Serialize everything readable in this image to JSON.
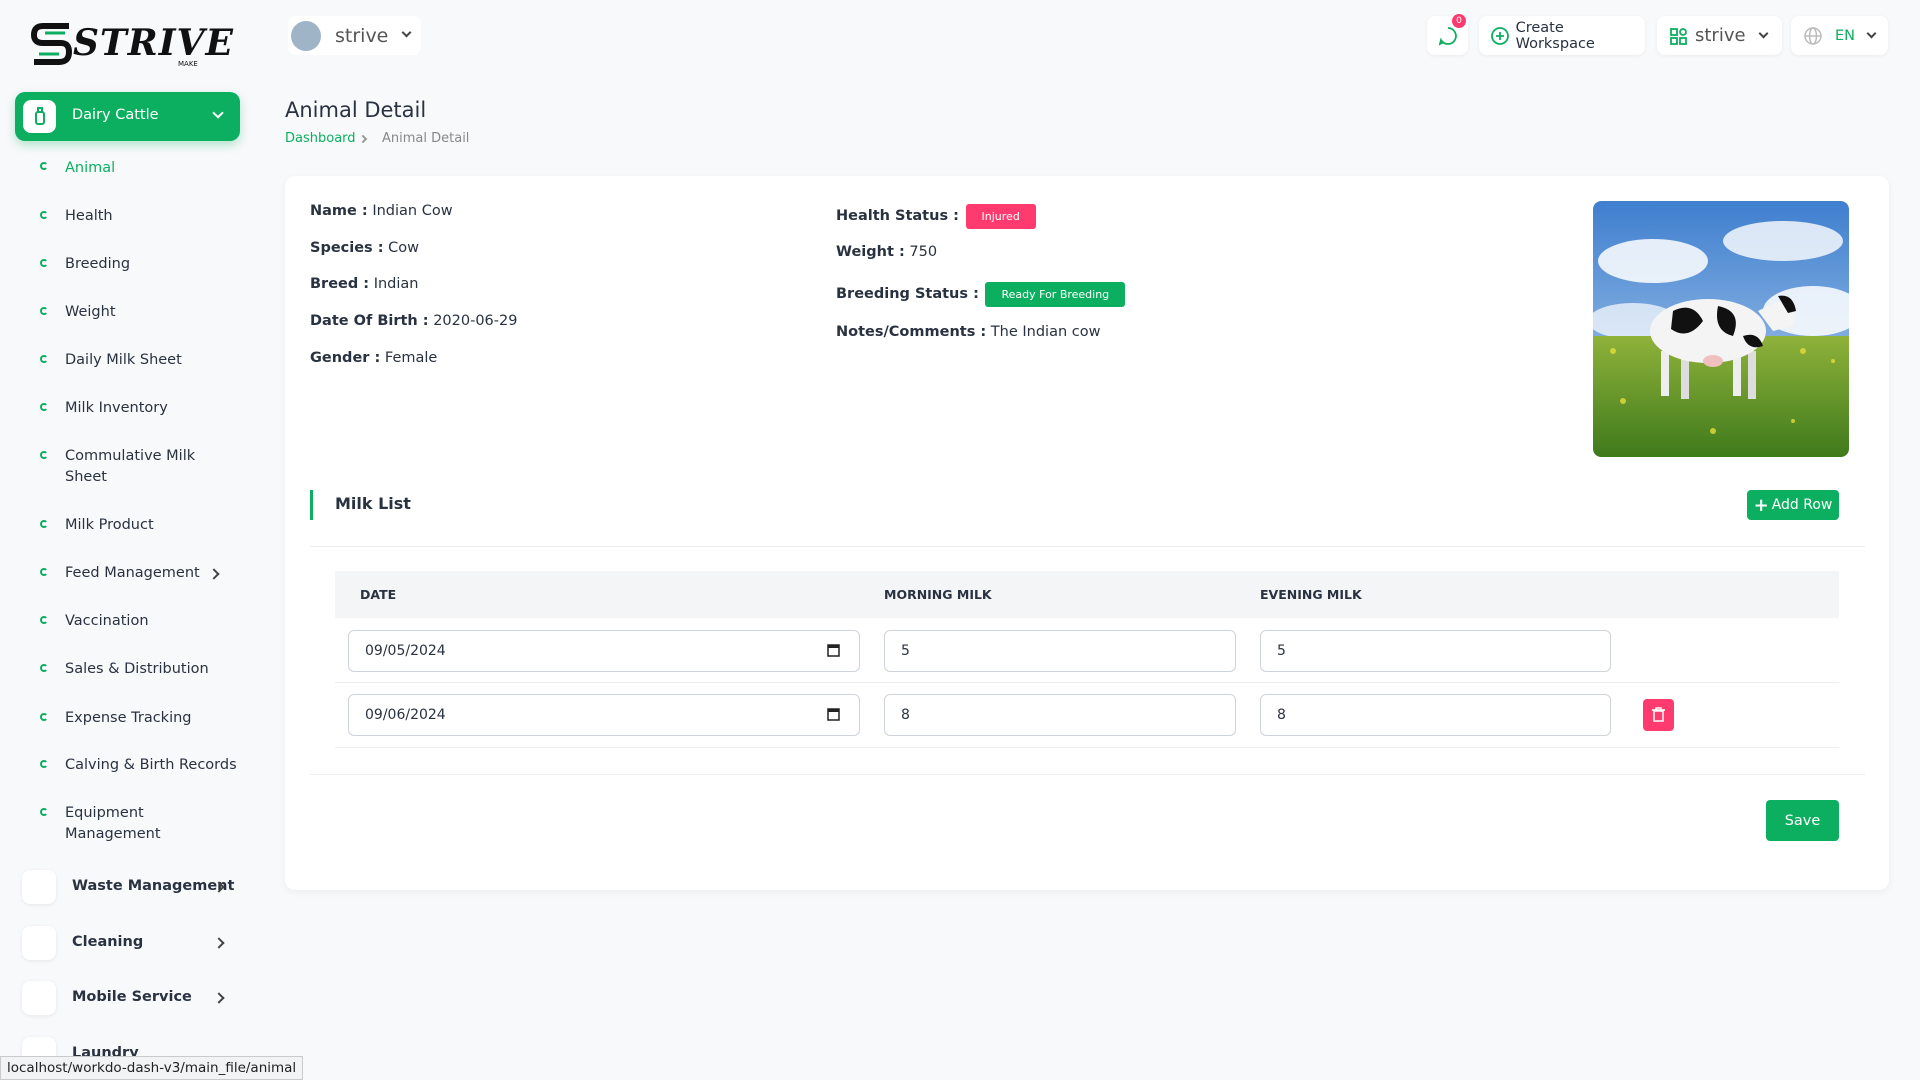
{
  "brand": {
    "logo": "STRIVE",
    "logo_sub": "MAKE"
  },
  "sidebar": {
    "active_group": "Dairy Cattle",
    "items": [
      "Animal",
      "Health",
      "Breeding",
      "Weight",
      "Daily Milk Sheet",
      "Milk Inventory",
      "Commulative Milk Sheet",
      "Milk Product",
      "Feed Management",
      "Vaccination",
      "Sales & Distribution",
      "Expense Tracking",
      "Calving & Birth Records",
      "Equipment Management"
    ],
    "groups": [
      "Waste Management",
      "Cleaning",
      "Mobile Service",
      "Laundry"
    ]
  },
  "header": {
    "workspace": "strive",
    "notifications": "0",
    "create_workspace": "Create Workspace",
    "user_workspace": "strive",
    "language": "EN"
  },
  "page": {
    "title": "Animal Detail",
    "breadcrumb": [
      "Dashboard",
      "Animal Detail"
    ]
  },
  "details": {
    "left": [
      {
        "label": "Name :",
        "value": "Indian Cow"
      },
      {
        "label": "Species :",
        "value": "Cow"
      },
      {
        "label": "Breed :",
        "value": "Indian"
      },
      {
        "label": "Date Of Birth :",
        "value": "2020-06-29"
      },
      {
        "label": "Gender :",
        "value": "Female"
      }
    ],
    "right": [
      {
        "label": "Health Status :",
        "value": "Injured"
      },
      {
        "label": "Weight :",
        "value": "750"
      },
      {
        "label": "Breeding Status :",
        "value": "Ready For Breeding"
      },
      {
        "label": "Notes/Comments :",
        "value": "The Indian cow"
      }
    ]
  },
  "milk_list": {
    "title": "Milk List",
    "add_button": "Add Row",
    "columns": [
      "DATE",
      "MORNING MILK",
      "EVENING MILK"
    ],
    "rows": [
      [
        "09/05/2024",
        "5",
        "5"
      ],
      [
        "09/06/2024",
        "8",
        "8"
      ]
    ],
    "save": "Save"
  },
  "status_bar": "localhost/workdo-dash-v3/main_file/animal"
}
